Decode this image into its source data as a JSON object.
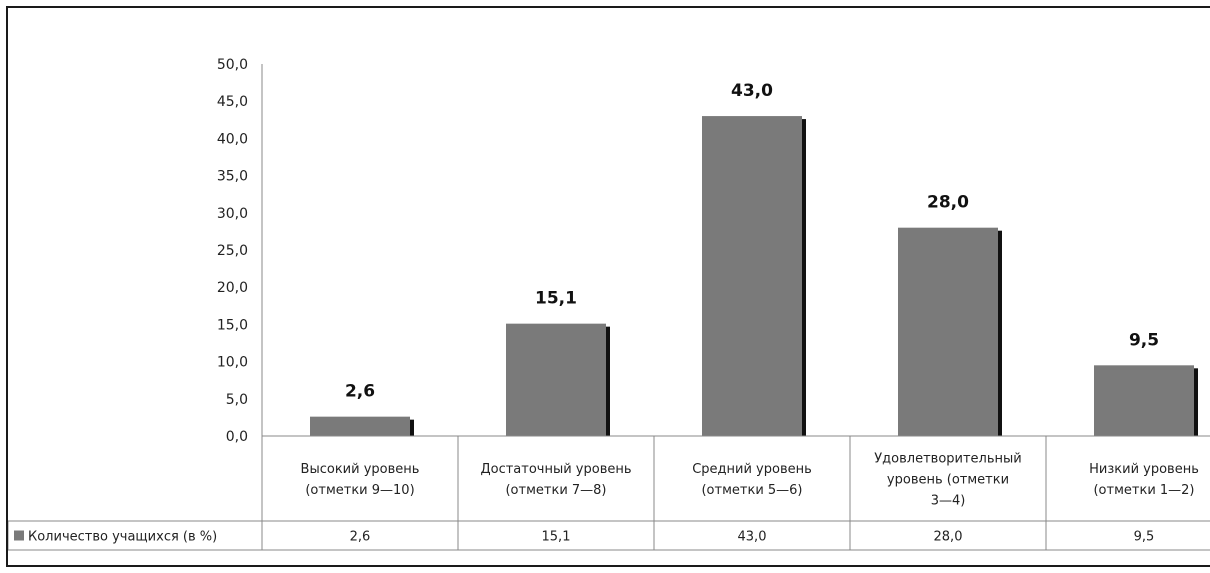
{
  "chart_data": {
    "type": "bar",
    "categories": [
      [
        "Высокий уровень",
        "(отметки 9—10)"
      ],
      [
        "Достаточный уровень",
        "(отметки 7—8)"
      ],
      [
        "Средний уровень",
        "(отметки 5—6)"
      ],
      [
        "Удовлетворительный",
        "уровень     (отметки",
        "3—4)"
      ],
      [
        "Низкий уровень",
        "(отметки 1—2)"
      ]
    ],
    "series": [
      {
        "name": "Количество учащихся (в %)",
        "values": [
          2.6,
          15.1,
          43.0,
          28.0,
          9.5
        ],
        "labels": [
          "2,6",
          "15,1",
          "43,0",
          "28,0",
          "9,5"
        ]
      }
    ],
    "y_ticks": [
      "0,0",
      "5,0",
      "10,0",
      "15,0",
      "20,0",
      "25,0",
      "30,0",
      "35,0",
      "40,0",
      "45,0",
      "50,0"
    ],
    "ylim": [
      0,
      50
    ],
    "grid": false,
    "data_table": true,
    "legend": "in-table",
    "colors": {
      "bar": "#7a7a7a",
      "bar_shadow": "#111111",
      "axis": "#888888"
    }
  }
}
